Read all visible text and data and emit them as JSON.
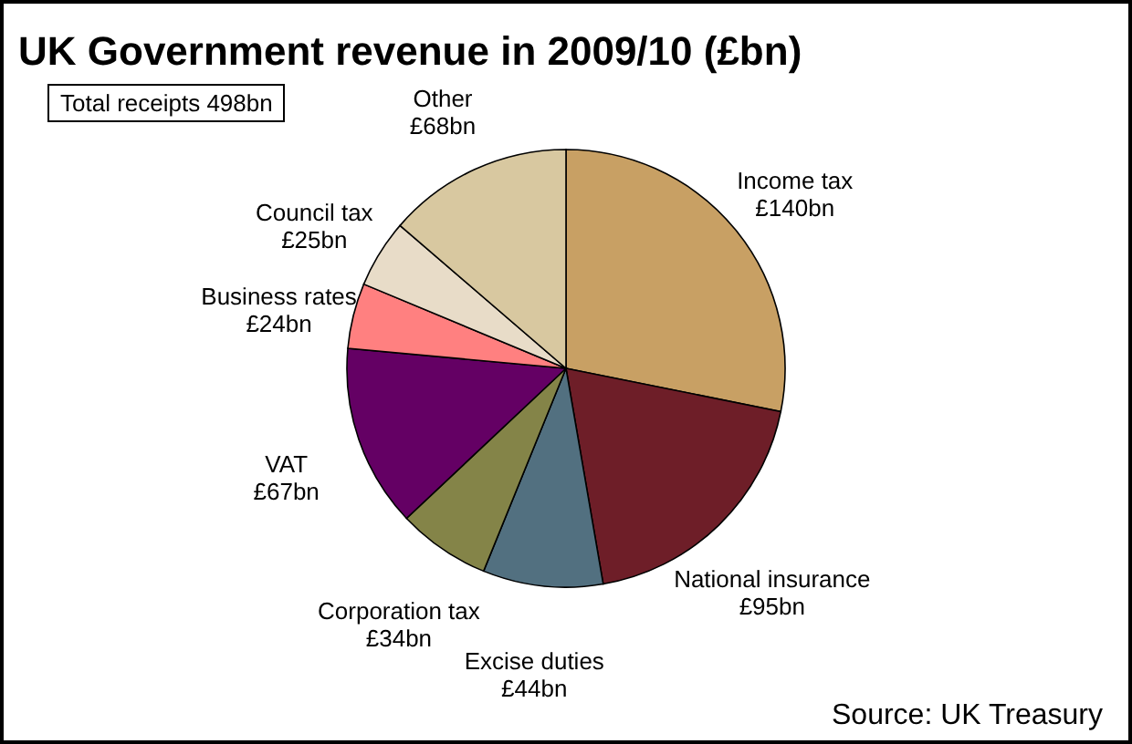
{
  "chart_data": {
    "type": "pie",
    "title": "UK Government revenue in 2009/10 (£bn)",
    "categories": [
      "Income tax",
      "National insurance",
      "Excise duties",
      "Corporation tax",
      "VAT",
      "Business rates",
      "Council tax",
      "Other"
    ],
    "values": [
      140,
      95,
      44,
      34,
      67,
      24,
      25,
      68
    ],
    "value_labels": [
      "£140bn",
      "£95bn",
      "£44bn",
      "£34bn",
      "£67bn",
      "£24bn",
      "£25bn",
      "£68bn"
    ],
    "colors": [
      "#c8a064",
      "#6e1e28",
      "#527080",
      "#848448",
      "#640064",
      "#ff8080",
      "#e8dcc8",
      "#d8c8a0"
    ],
    "annotations": [
      "Total receipts 498bn",
      "Source:  UK Treasury"
    ]
  }
}
